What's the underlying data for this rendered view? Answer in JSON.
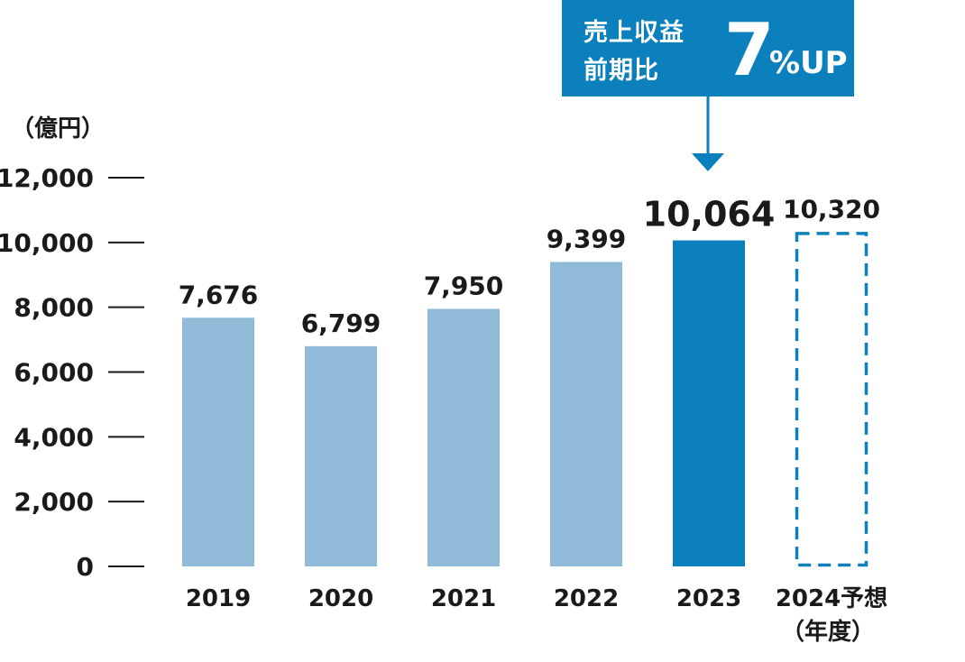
{
  "callout": {
    "line1": "売上収益",
    "line2": "前期比",
    "value": "7",
    "unit": "%UP"
  },
  "chart_data": {
    "type": "bar",
    "unit_label": "（億円）",
    "categories": [
      "2019",
      "2020",
      "2021",
      "2022",
      "2023",
      "2024予想"
    ],
    "category_note": "（年度）",
    "values": [
      7676,
      6799,
      7950,
      9399,
      10064,
      10320
    ],
    "value_labels": [
      "7,676",
      "6,799",
      "7,950",
      "9,399",
      "10,064",
      "10,320"
    ],
    "highlight_index": 4,
    "forecast_index": 5,
    "ylim": [
      0,
      12000
    ],
    "yticks": [
      0,
      2000,
      4000,
      6000,
      8000,
      10000,
      12000
    ],
    "ytick_labels": [
      "0",
      "2,000",
      "4,000",
      "6,000",
      "8,000",
      "10,000",
      "12,000"
    ],
    "colors": {
      "bar": "#91bad9",
      "highlight": "#0b80bd",
      "forecast": "#0b80bd",
      "text": "#1a1a1a"
    }
  }
}
